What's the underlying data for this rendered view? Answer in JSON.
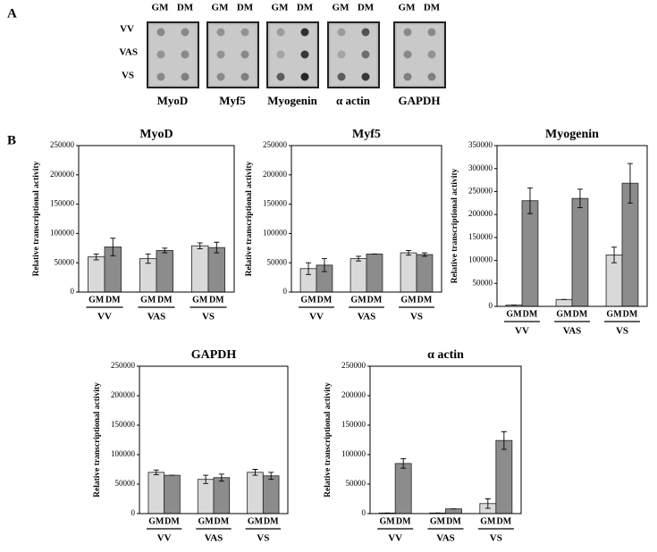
{
  "panel_a": {
    "label": "A",
    "columns": [
      "GM",
      "DM"
    ],
    "rows": [
      "VV",
      "VAS",
      "VS"
    ],
    "blots": [
      "MyoD",
      "Myf5",
      "Myogenin",
      "α actin",
      "GAPDH"
    ]
  },
  "panel_b": {
    "label": "B"
  },
  "chart_data": [
    {
      "type": "bar",
      "title": "MyoD",
      "y_label": "Relative transcriptional activity",
      "categories": [
        "VV",
        "VAS",
        "VS"
      ],
      "series": [
        {
          "name": "GM",
          "color": "#d9d9d9",
          "values": [
            60000,
            57000,
            79000
          ],
          "errors": [
            5000,
            8000,
            5000
          ]
        },
        {
          "name": "DM",
          "color": "#8c8c8c",
          "values": [
            77000,
            71000,
            76000
          ],
          "errors": [
            15000,
            4000,
            9000
          ]
        }
      ],
      "ylim": [
        0,
        250000
      ],
      "yticks": [
        0,
        50000,
        100000,
        150000,
        200000,
        250000
      ]
    },
    {
      "type": "bar",
      "title": "Myf5",
      "y_label": "Relative transcriptional activity",
      "categories": [
        "VV",
        "VAS",
        "VS"
      ],
      "series": [
        {
          "name": "GM",
          "color": "#d9d9d9",
          "values": [
            40000,
            57000,
            67000
          ],
          "errors": [
            10000,
            4000,
            4000
          ]
        },
        {
          "name": "DM",
          "color": "#8c8c8c",
          "values": [
            46000,
            65000,
            64000
          ],
          "errors": [
            11000,
            0,
            3000
          ]
        }
      ],
      "ylim": [
        0,
        250000
      ],
      "yticks": [
        0,
        50000,
        100000,
        150000,
        200000,
        250000
      ]
    },
    {
      "type": "bar",
      "title": "Myogenin",
      "y_label": "Relative transcriptional activity",
      "categories": [
        "VV",
        "VAS",
        "VS"
      ],
      "series": [
        {
          "name": "GM",
          "color": "#d9d9d9",
          "values": [
            3000,
            15000,
            112000
          ],
          "errors": [
            0,
            0,
            17000
          ]
        },
        {
          "name": "DM",
          "color": "#8c8c8c",
          "values": [
            230000,
            235000,
            268000
          ],
          "errors": [
            28000,
            20000,
            43000
          ]
        }
      ],
      "ylim": [
        0,
        350000
      ],
      "yticks": [
        0,
        50000,
        100000,
        150000,
        200000,
        250000,
        300000,
        350000
      ]
    },
    {
      "type": "bar",
      "title": "GAPDH",
      "y_label": "Relative transcriptional activity",
      "categories": [
        "VV",
        "VAS",
        "VS"
      ],
      "series": [
        {
          "name": "GM",
          "color": "#d9d9d9",
          "values": [
            70000,
            58000,
            70000
          ],
          "errors": [
            4000,
            7000,
            5000
          ]
        },
        {
          "name": "DM",
          "color": "#8c8c8c",
          "values": [
            65000,
            61000,
            64000
          ],
          "errors": [
            0,
            6000,
            6000
          ]
        }
      ],
      "ylim": [
        0,
        250000
      ],
      "yticks": [
        0,
        50000,
        100000,
        150000,
        200000,
        250000
      ]
    },
    {
      "type": "bar",
      "title": "α actin",
      "y_label": "Relative transcriptional activity",
      "categories": [
        "VV",
        "VAS",
        "VS"
      ],
      "series": [
        {
          "name": "GM",
          "color": "#d9d9d9",
          "values": [
            1000,
            1000,
            17000
          ],
          "errors": [
            0,
            0,
            8000
          ]
        },
        {
          "name": "DM",
          "color": "#8c8c8c",
          "values": [
            85000,
            8000,
            124000
          ],
          "errors": [
            8000,
            0,
            15000
          ]
        }
      ],
      "ylim": [
        0,
        250000
      ],
      "yticks": [
        0,
        50000,
        100000,
        150000,
        200000,
        250000
      ]
    }
  ]
}
